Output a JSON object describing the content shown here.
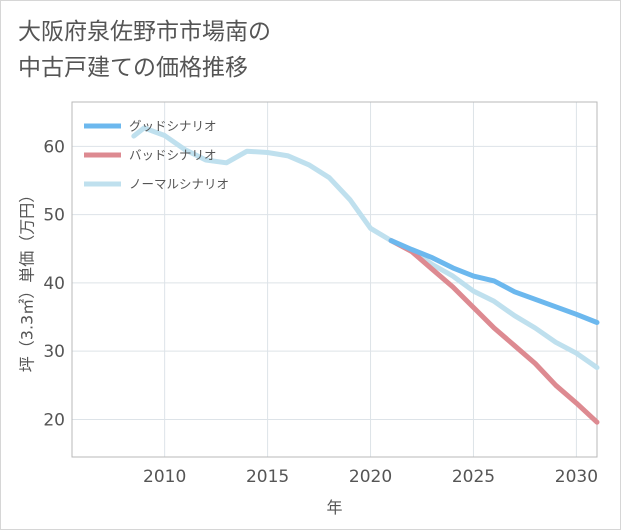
{
  "title_lines": [
    "大阪府泉佐野市市場南の",
    "中古戸建ての価格推移"
  ],
  "chart_data": {
    "type": "line",
    "title": "大阪府泉佐野市市場南の中古戸建ての価格推移",
    "xlabel": "年",
    "ylabel": "坪（3.3㎡）単価（万円）",
    "xlim": [
      2005.5,
      2031
    ],
    "ylim": [
      14.5,
      66.5
    ],
    "x_ticks": [
      2010,
      2015,
      2020,
      2025,
      2030
    ],
    "y_ticks": [
      20,
      30,
      40,
      50,
      60
    ],
    "grid": true,
    "legend_position": "top-left",
    "series": [
      {
        "name": "グッドシナリオ",
        "color": "#6cb8ee",
        "points": [
          [
            2021,
            46.2
          ],
          [
            2022,
            44.9
          ],
          [
            2023,
            43.7
          ],
          [
            2024,
            42.2
          ],
          [
            2025,
            41.0
          ],
          [
            2026,
            40.3
          ],
          [
            2027,
            38.7
          ],
          [
            2028,
            37.6
          ],
          [
            2029,
            36.5
          ],
          [
            2030,
            35.4
          ],
          [
            2031,
            34.2
          ]
        ]
      },
      {
        "name": "バッドシナリオ",
        "color": "#dd8a91",
        "points": [
          [
            2021,
            46.2
          ],
          [
            2022,
            44.6
          ],
          [
            2023,
            42.0
          ],
          [
            2024,
            39.4
          ],
          [
            2025,
            36.4
          ],
          [
            2026,
            33.4
          ],
          [
            2027,
            30.8
          ],
          [
            2028,
            28.2
          ],
          [
            2029,
            25.0
          ],
          [
            2030,
            22.4
          ],
          [
            2031,
            19.6
          ]
        ]
      },
      {
        "name": "ノーマルシナリオ",
        "color": "#bfe0ee",
        "points": [
          [
            2008.5,
            61.5
          ],
          [
            2009,
            62.7
          ],
          [
            2010,
            61.6
          ],
          [
            2011,
            59.5
          ],
          [
            2012,
            58.0
          ],
          [
            2013,
            57.6
          ],
          [
            2014,
            59.3
          ],
          [
            2015,
            59.1
          ],
          [
            2016,
            58.6
          ],
          [
            2017,
            57.3
          ],
          [
            2018,
            55.4
          ],
          [
            2019,
            52.2
          ],
          [
            2020,
            48.0
          ],
          [
            2021,
            46.2
          ],
          [
            2022,
            44.7
          ],
          [
            2023,
            42.7
          ],
          [
            2024,
            41.0
          ],
          [
            2025,
            38.8
          ],
          [
            2026,
            37.3
          ],
          [
            2027,
            35.2
          ],
          [
            2028,
            33.4
          ],
          [
            2029,
            31.3
          ],
          [
            2030,
            29.7
          ],
          [
            2031,
            27.6
          ]
        ]
      }
    ]
  }
}
